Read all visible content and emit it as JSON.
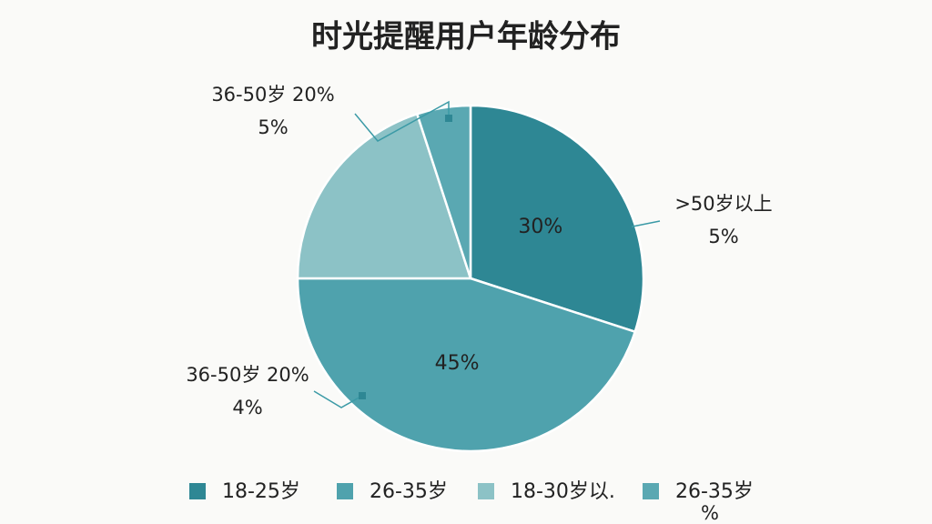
{
  "chart_data": {
    "type": "pie",
    "title": "时光提醒用户年龄分布",
    "categories": [
      "18-25岁",
      "26-35岁",
      "18-30岁以.",
      "26-35岁"
    ],
    "values": [
      30,
      45,
      20,
      5
    ],
    "value_labels": [
      "30%",
      "45%",
      null,
      null
    ],
    "colors": [
      "#2e8794",
      "#4fa2ad",
      "#8cc2c6",
      "#5aa8b2"
    ],
    "annotations": [
      [
        "36-50岁 20%",
        "5%"
      ],
      [
        ">50岁以上",
        "5%"
      ],
      [
        "36-50岁 20%",
        "4%"
      ],
      [
        "%"
      ]
    ]
  }
}
